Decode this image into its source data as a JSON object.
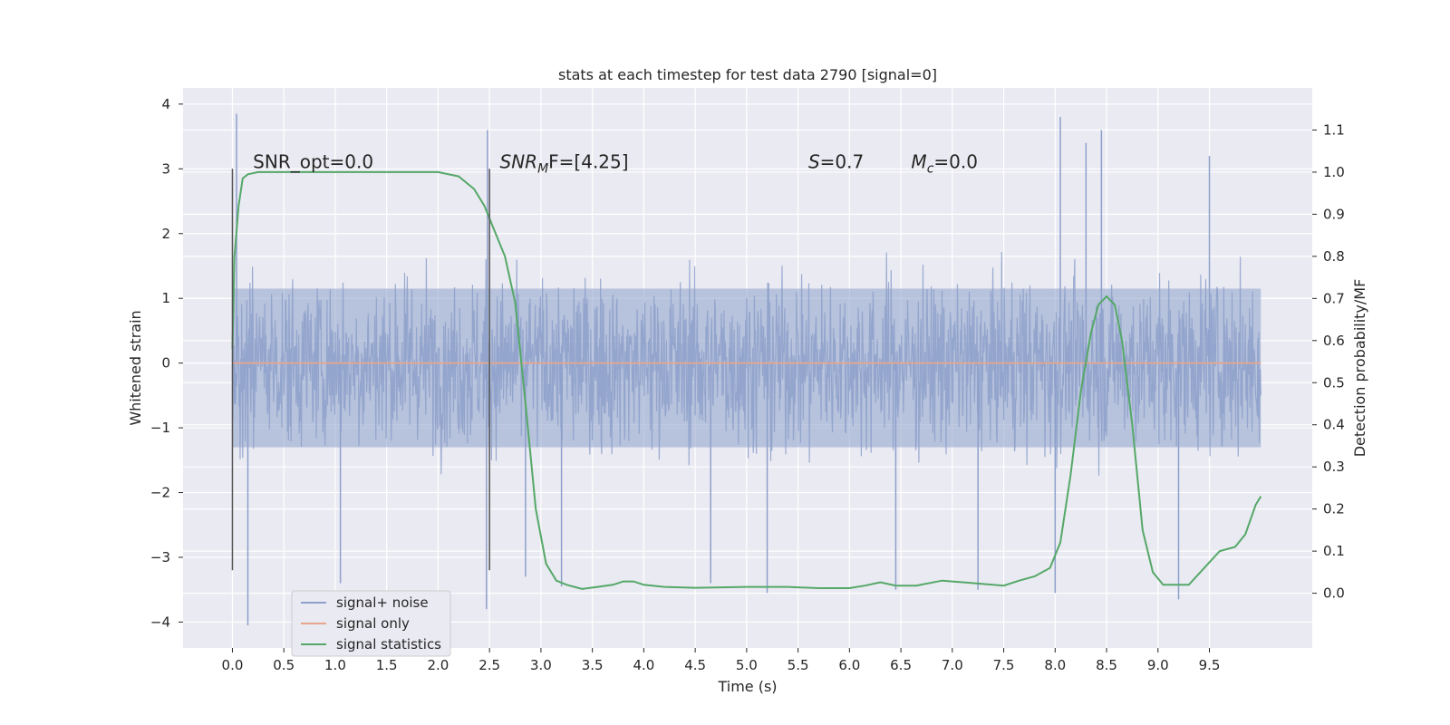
{
  "chart_data": {
    "type": "line",
    "title": "stats at each timestep for test data 2790 [signal=0]",
    "xlabel": "Time (s)",
    "ylabel": "Whitened strain",
    "y2label": "Detection probability/MF",
    "xlim": [
      -0.48,
      10.5
    ],
    "ylim": [
      -4.4,
      4.25
    ],
    "y2lim": [
      -0.13,
      1.2
    ],
    "x_ticks": [
      0.0,
      0.5,
      1.0,
      1.5,
      2.0,
      2.5,
      3.0,
      3.5,
      4.0,
      4.5,
      5.0,
      5.5,
      6.0,
      6.5,
      7.0,
      7.5,
      8.0,
      8.5,
      9.0,
      9.5
    ],
    "x_tick_labels": [
      "0.0",
      "0.5",
      "1.0",
      "1.5",
      "2.0",
      "2.5",
      "3.0",
      "3.5",
      "4.0",
      "4.5",
      "5.0",
      "5.5",
      "6.0",
      "6.5",
      "7.0",
      "7.5",
      "8.0",
      "8.5",
      "9.0",
      "9.5"
    ],
    "y_ticks": [
      -4,
      -3,
      -2,
      -1,
      0,
      1,
      2,
      3,
      4
    ],
    "y_tick_labels": [
      "−4",
      "−3",
      "−2",
      "−1",
      "0",
      "1",
      "2",
      "3",
      "4"
    ],
    "y2_ticks": [
      0.0,
      0.1,
      0.2,
      0.3,
      0.4,
      0.5,
      0.6,
      0.7,
      0.8,
      0.9,
      1.0,
      1.1
    ],
    "y2_tick_labels": [
      "0.0",
      "0.1",
      "0.2",
      "0.3",
      "0.4",
      "0.5",
      "0.6",
      "0.7",
      "0.8",
      "0.9",
      "1.0",
      "1.1"
    ],
    "grid": true,
    "legend_position": "bottom-left",
    "series": [
      {
        "name": "signal+ noise",
        "axis": "left",
        "color": "#8da0cb",
        "kind": "noise",
        "x_range": [
          0.0,
          10.0
        ],
        "typical_abs_max": 2.3,
        "spikes": [
          [
            0.04,
            3.85
          ],
          [
            0.15,
            -4.05
          ],
          [
            2.48,
            3.6
          ],
          [
            2.47,
            -3.8
          ],
          [
            1.05,
            -3.4
          ],
          [
            2.85,
            -3.3
          ],
          [
            3.2,
            -3.45
          ],
          [
            4.65,
            -3.4
          ],
          [
            5.2,
            -3.55
          ],
          [
            6.45,
            -3.5
          ],
          [
            7.25,
            -3.5
          ],
          [
            8.0,
            -3.55
          ],
          [
            8.05,
            3.8
          ],
          [
            8.45,
            3.6
          ],
          [
            8.3,
            3.4
          ],
          [
            9.2,
            -3.65
          ],
          [
            9.5,
            3.2
          ]
        ]
      },
      {
        "name": "signal only",
        "axis": "left",
        "color": "#e8a58c",
        "x": [
          0.0,
          10.0
        ],
        "y": [
          0.0,
          0.0
        ]
      },
      {
        "name": "signal statistics",
        "axis": "right",
        "color": "#55a868",
        "x": [
          0.0,
          0.02,
          0.06,
          0.1,
          0.15,
          0.25,
          0.4,
          0.6,
          1.0,
          1.5,
          2.0,
          2.2,
          2.35,
          2.45,
          2.55,
          2.65,
          2.75,
          2.85,
          2.95,
          3.05,
          3.15,
          3.25,
          3.4,
          3.55,
          3.7,
          3.8,
          3.9,
          4.0,
          4.2,
          4.5,
          5.0,
          5.4,
          5.7,
          6.0,
          6.15,
          6.3,
          6.45,
          6.65,
          6.9,
          7.1,
          7.3,
          7.5,
          7.65,
          7.8,
          7.95,
          8.05,
          8.15,
          8.25,
          8.35,
          8.42,
          8.5,
          8.58,
          8.65,
          8.75,
          8.85,
          8.95,
          9.05,
          9.15,
          9.3,
          9.45,
          9.6,
          9.75,
          9.85,
          9.95,
          10.0
        ],
        "y": [
          0.58,
          0.8,
          0.92,
          0.985,
          0.995,
          1.0,
          1.0,
          1.0,
          1.0,
          1.0,
          1.0,
          0.99,
          0.96,
          0.92,
          0.86,
          0.8,
          0.69,
          0.45,
          0.2,
          0.07,
          0.03,
          0.02,
          0.01,
          0.015,
          0.02,
          0.028,
          0.028,
          0.02,
          0.015,
          0.013,
          0.015,
          0.015,
          0.012,
          0.012,
          0.018,
          0.026,
          0.018,
          0.018,
          0.03,
          0.026,
          0.022,
          0.018,
          0.03,
          0.04,
          0.06,
          0.12,
          0.28,
          0.48,
          0.62,
          0.685,
          0.705,
          0.685,
          0.6,
          0.4,
          0.15,
          0.05,
          0.02,
          0.02,
          0.02,
          0.06,
          0.1,
          0.11,
          0.14,
          0.21,
          0.23
        ]
      }
    ],
    "vlines": [
      {
        "x": 0.0,
        "y_range": [
          -3.2,
          3.0
        ],
        "color": "#555555"
      },
      {
        "x": 2.5,
        "y_range": [
          -3.2,
          3.0
        ],
        "color": "#555555"
      }
    ],
    "annotations": [
      {
        "x": 0.2,
        "y": 3.0,
        "text": "SNR_opt=0.0"
      },
      {
        "x": 2.6,
        "y": 3.0,
        "text_main": "SNR",
        "text_sub": "M",
        "text_after": "F=[4.25]"
      },
      {
        "x": 5.6,
        "y": 3.0,
        "text_main": "S",
        "text_after": "=0.7"
      },
      {
        "x": 6.6,
        "y": 3.0,
        "text_main": "M",
        "text_sub": "c",
        "text_after": "=0.0"
      }
    ]
  }
}
